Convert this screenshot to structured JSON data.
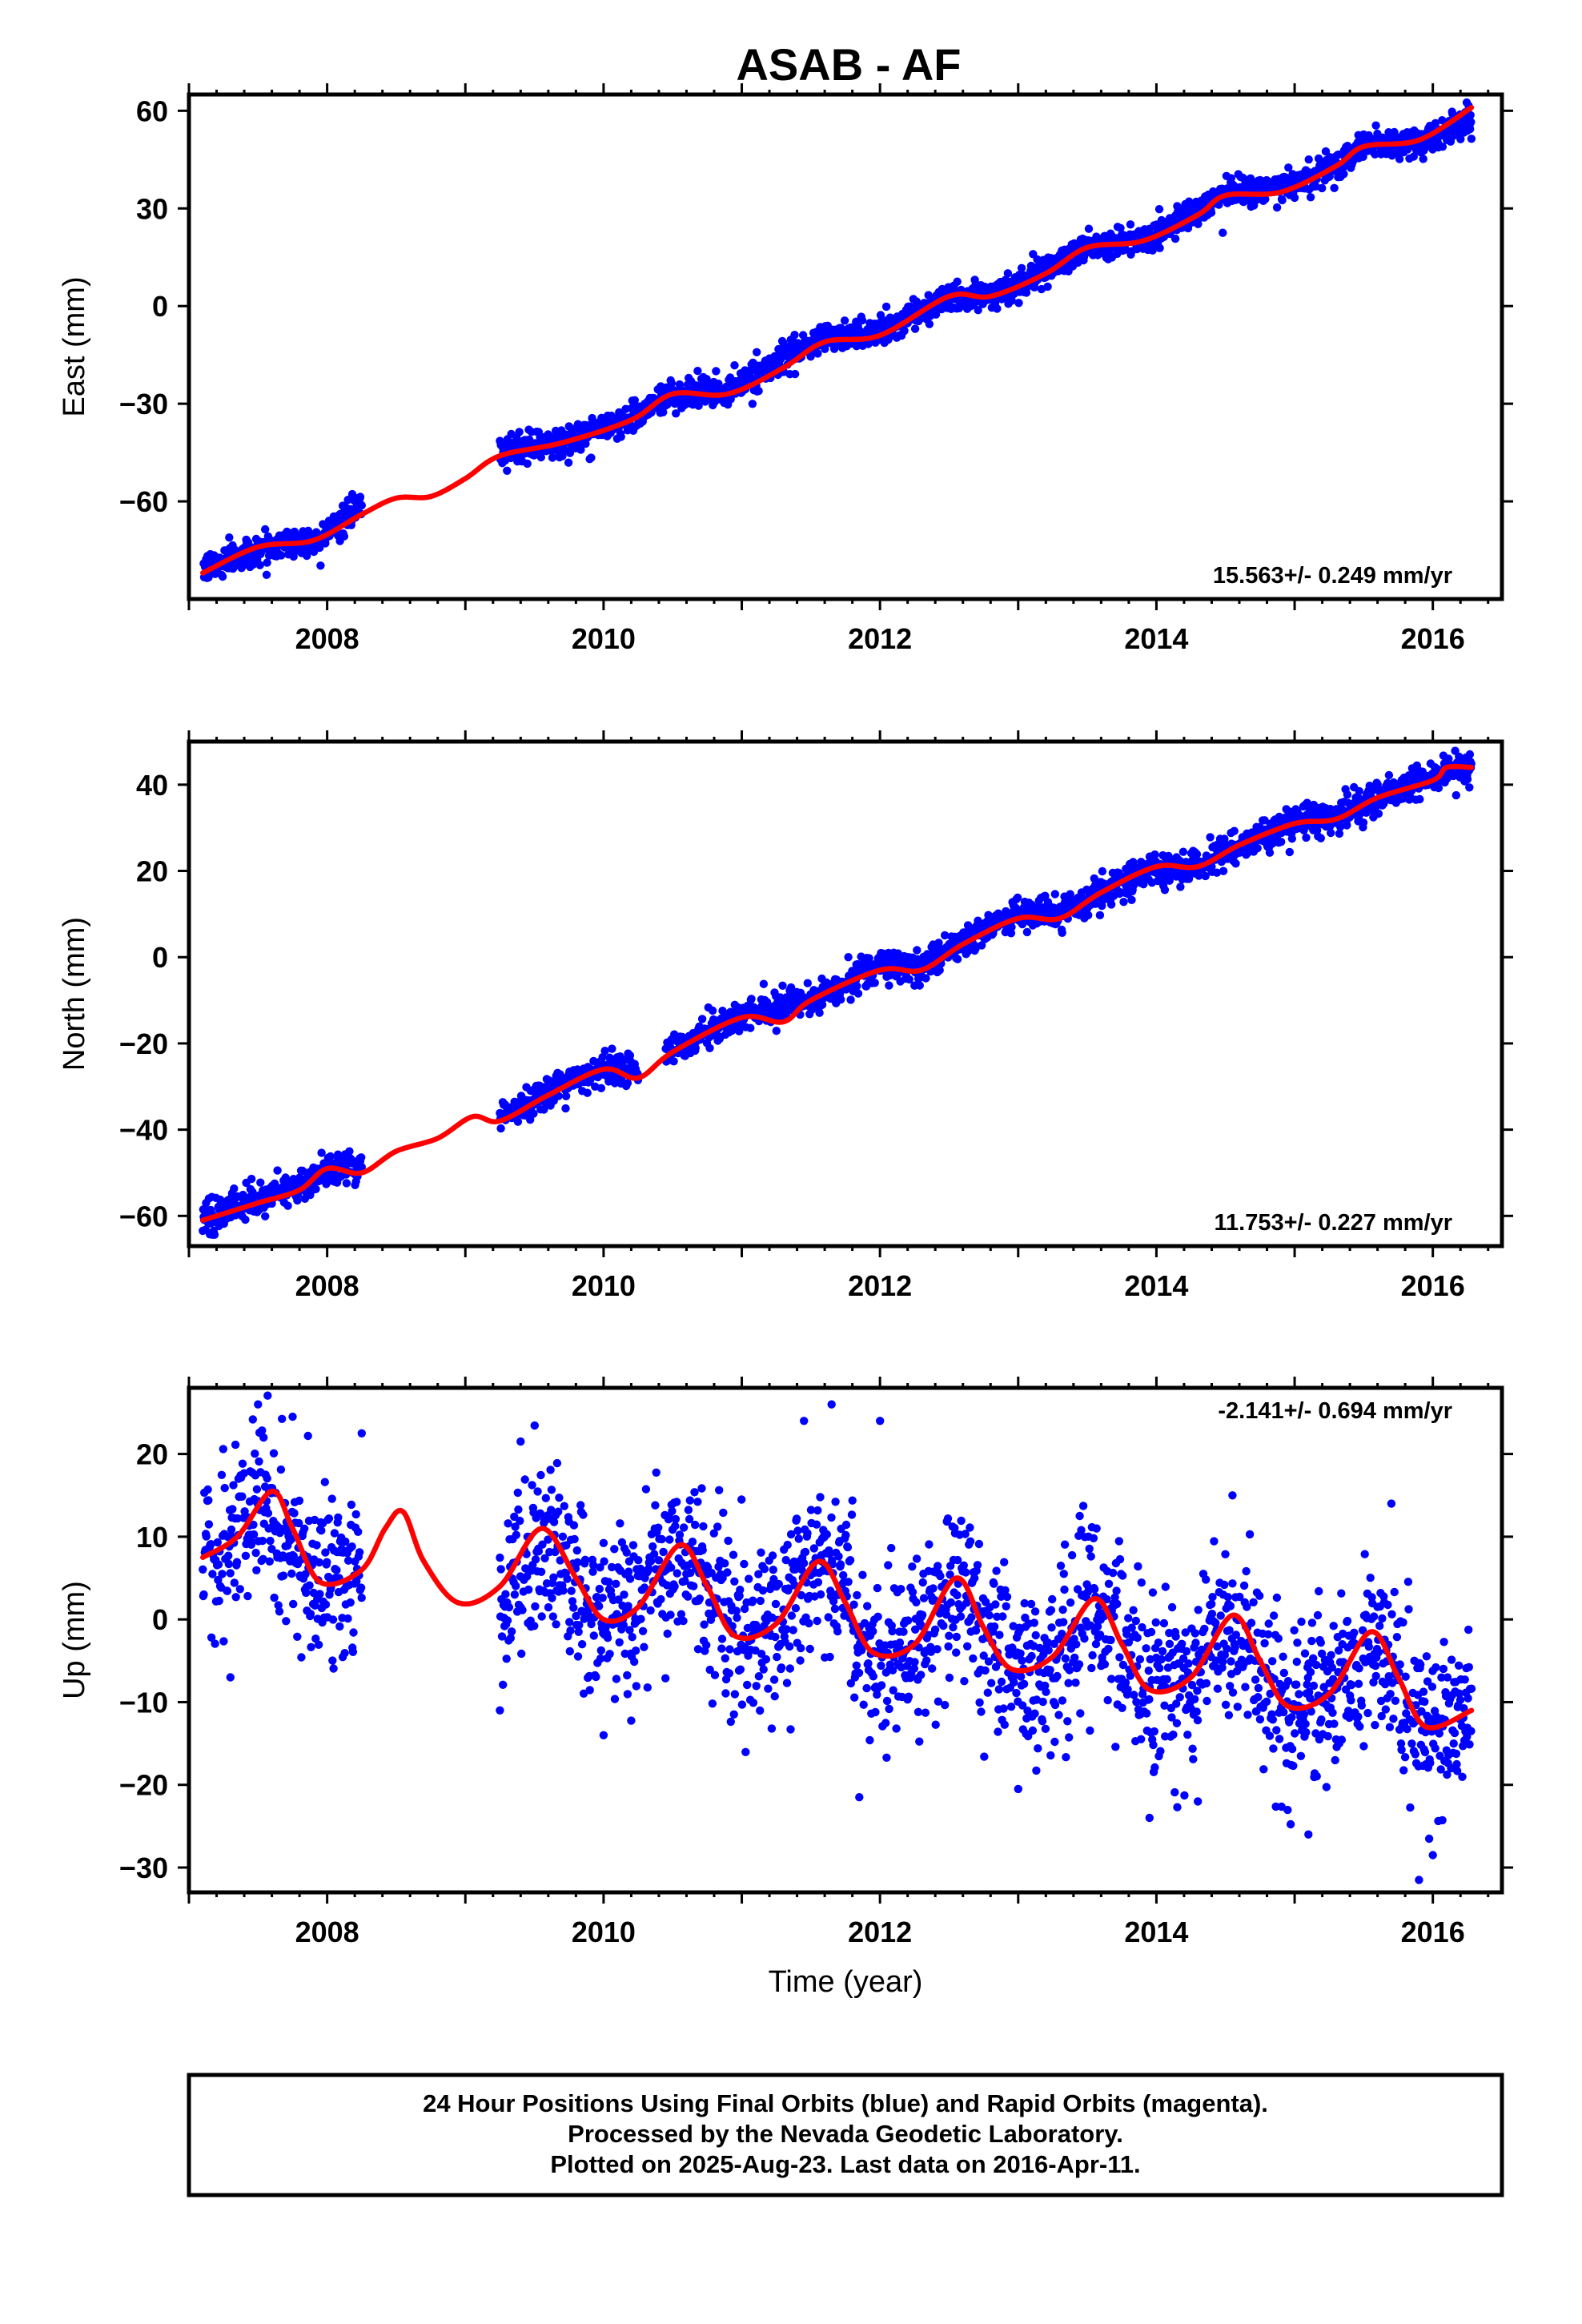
{
  "title": "ASAB - AF",
  "footer": {
    "lines": [
      "24 Hour Positions Using Final Orbits (blue) and Rapid Orbits (magenta).",
      "Processed by the Nevada Geodetic Laboratory.",
      "Plotted on 2025-Aug-23. Last data on 2016-Apr-11."
    ]
  },
  "colors": {
    "points": "#0000ff",
    "model": "#ff0000",
    "frame": "#000000"
  },
  "chart_data": [
    {
      "type": "scatter",
      "ylabel": "East (mm)",
      "xlabel": "",
      "xlim": [
        2007.0,
        2016.5
      ],
      "ylim": [
        -90,
        65
      ],
      "xticks": [
        "2008",
        "2010",
        "2012",
        "2014",
        "2016"
      ],
      "yticks": [
        "60",
        "30",
        "0",
        "-30",
        "-60"
      ],
      "rate": "15.563+/- 0.249 mm/yr",
      "rate_position": "bottom-right",
      "series": [
        {
          "kind": "points",
          "color": "#0000ff",
          "segments": [
            [
              2007.1,
              2008.25
            ],
            [
              2009.25,
              2016.28
            ]
          ],
          "trend": [
            [
              2007.1,
              -81
            ],
            [
              2007.5,
              -74
            ],
            [
              2007.9,
              -72
            ],
            [
              2008.25,
              -62
            ],
            [
              2009.25,
              -45
            ],
            [
              2009.7,
              -42
            ],
            [
              2010.2,
              -34
            ],
            [
              2010.5,
              -27
            ],
            [
              2010.9,
              -26
            ],
            [
              2011.3,
              -16
            ],
            [
              2011.6,
              -10
            ],
            [
              2012.0,
              -8
            ],
            [
              2012.5,
              3
            ],
            [
              2012.8,
              3
            ],
            [
              2013.2,
              11
            ],
            [
              2013.5,
              19
            ],
            [
              2013.9,
              20
            ],
            [
              2014.3,
              29
            ],
            [
              2014.5,
              35
            ],
            [
              2014.9,
              36
            ],
            [
              2015.3,
              43
            ],
            [
              2015.5,
              50
            ],
            [
              2015.9,
              50
            ],
            [
              2016.28,
              58
            ]
          ],
          "scatter_mm": 2.2,
          "outliers": [
            [
              2014.48,
              22.5
            ],
            [
              2009.9,
              -47
            ]
          ]
        },
        {
          "kind": "model",
          "color": "#ff0000",
          "points": [
            [
              2007.1,
              -82
            ],
            [
              2007.5,
              -74
            ],
            [
              2007.9,
              -72
            ],
            [
              2008.25,
              -64
            ],
            [
              2008.5,
              -59
            ],
            [
              2008.75,
              -58.5
            ],
            [
              2009.0,
              -53
            ],
            [
              2009.25,
              -46
            ],
            [
              2009.7,
              -42
            ],
            [
              2010.2,
              -35
            ],
            [
              2010.5,
              -27
            ],
            [
              2010.9,
              -27
            ],
            [
              2011.3,
              -19
            ],
            [
              2011.6,
              -11
            ],
            [
              2012.0,
              -9
            ],
            [
              2012.5,
              3
            ],
            [
              2012.8,
              3
            ],
            [
              2013.2,
              10
            ],
            [
              2013.5,
              18
            ],
            [
              2013.9,
              20
            ],
            [
              2014.3,
              28
            ],
            [
              2014.5,
              34
            ],
            [
              2014.9,
              35
            ],
            [
              2015.3,
              43
            ],
            [
              2015.5,
              49
            ],
            [
              2015.9,
              51
            ],
            [
              2016.28,
              61
            ]
          ]
        }
      ]
    },
    {
      "type": "scatter",
      "ylabel": "North (mm)",
      "xlabel": "",
      "xlim": [
        2007.0,
        2016.5
      ],
      "ylim": [
        -67,
        50
      ],
      "xticks": [
        "2008",
        "2010",
        "2012",
        "2014",
        "2016"
      ],
      "yticks": [
        "40",
        "20",
        "0",
        "-20",
        "-40",
        "-60"
      ],
      "rate": "11.753+/- 0.227 mm/yr",
      "rate_position": "bottom-right",
      "series": [
        {
          "kind": "points",
          "color": "#0000ff",
          "segments": [
            [
              2007.1,
              2008.25
            ],
            [
              2009.25,
              2010.25
            ],
            [
              2010.45,
              2016.28
            ]
          ],
          "trend": [
            [
              2007.1,
              -61
            ],
            [
              2007.5,
              -56
            ],
            [
              2007.8,
              -53
            ],
            [
              2008.0,
              -49
            ],
            [
              2008.25,
              -49
            ],
            [
              2009.25,
              -37
            ],
            [
              2009.6,
              -31
            ],
            [
              2010.0,
              -26
            ],
            [
              2010.25,
              -26
            ],
            [
              2010.45,
              -22
            ],
            [
              2011.0,
              -14
            ],
            [
              2011.5,
              -10
            ],
            [
              2012.0,
              -2
            ],
            [
              2012.3,
              -2
            ],
            [
              2012.6,
              4
            ],
            [
              2013.0,
              10
            ],
            [
              2013.3,
              10
            ],
            [
              2013.6,
              15
            ],
            [
              2014.0,
              21
            ],
            [
              2014.3,
              21
            ],
            [
              2014.6,
              26
            ],
            [
              2015.0,
              31
            ],
            [
              2015.3,
              33
            ],
            [
              2015.6,
              37
            ],
            [
              2016.0,
              42
            ],
            [
              2016.28,
              44
            ]
          ],
          "scatter_mm": 1.8,
          "outliers": []
        },
        {
          "kind": "model",
          "color": "#ff0000",
          "points": [
            [
              2007.1,
              -61
            ],
            [
              2007.5,
              -57
            ],
            [
              2007.8,
              -54
            ],
            [
              2008.0,
              -49
            ],
            [
              2008.25,
              -50
            ],
            [
              2008.5,
              -45
            ],
            [
              2008.8,
              -42
            ],
            [
              2009.05,
              -37
            ],
            [
              2009.25,
              -38
            ],
            [
              2009.6,
              -32
            ],
            [
              2010.0,
              -26
            ],
            [
              2010.25,
              -28
            ],
            [
              2010.5,
              -22
            ],
            [
              2011.0,
              -14
            ],
            [
              2011.3,
              -15
            ],
            [
              2011.5,
              -10
            ],
            [
              2012.0,
              -3
            ],
            [
              2012.3,
              -3
            ],
            [
              2012.6,
              3
            ],
            [
              2013.0,
              9
            ],
            [
              2013.3,
              9
            ],
            [
              2013.6,
              15
            ],
            [
              2014.0,
              21
            ],
            [
              2014.3,
              21
            ],
            [
              2014.6,
              26
            ],
            [
              2015.0,
              31
            ],
            [
              2015.3,
              32
            ],
            [
              2015.6,
              37
            ],
            [
              2016.0,
              41
            ],
            [
              2016.1,
              44
            ],
            [
              2016.28,
              44
            ]
          ]
        }
      ]
    },
    {
      "type": "scatter",
      "ylabel": "Up (mm)",
      "xlabel": "Time (year)",
      "xlim": [
        2007.0,
        2016.5
      ],
      "ylim": [
        -33,
        28
      ],
      "xticks": [
        "2008",
        "2010",
        "2012",
        "2014",
        "2016"
      ],
      "yticks": [
        "20",
        "10",
        "0",
        "-10",
        "-20",
        "-30"
      ],
      "rate": "-2.141+/- 0.694 mm/yr",
      "rate_position": "top-right",
      "series": [
        {
          "kind": "points",
          "color": "#0000ff",
          "segments": [
            [
              2007.1,
              2008.25
            ],
            [
              2009.25,
              2016.28
            ]
          ],
          "trend": [
            [
              2007.1,
              7
            ],
            [
              2007.55,
              15
            ],
            [
              2007.9,
              4
            ],
            [
              2008.25,
              6
            ],
            [
              2009.25,
              3
            ],
            [
              2009.55,
              10
            ],
            [
              2009.95,
              0
            ],
            [
              2010.2,
              1
            ],
            [
              2010.55,
              8
            ],
            [
              2010.95,
              -2
            ],
            [
              2011.25,
              -1
            ],
            [
              2011.55,
              8
            ],
            [
              2011.95,
              -4
            ],
            [
              2012.25,
              -3
            ],
            [
              2012.55,
              4
            ],
            [
              2012.95,
              -6
            ],
            [
              2013.25,
              -5
            ],
            [
              2013.55,
              2
            ],
            [
              2013.95,
              -8
            ],
            [
              2014.25,
              -7
            ],
            [
              2014.55,
              0
            ],
            [
              2014.95,
              -11
            ],
            [
              2015.25,
              -9
            ],
            [
              2015.55,
              -2
            ],
            [
              2015.95,
              -13
            ],
            [
              2016.28,
              -11
            ]
          ],
          "scatter_mm": 5.0,
          "outliers": [
            [
              2007.5,
              26
            ],
            [
              2007.75,
              24.5
            ],
            [
              2008.25,
              22.5
            ],
            [
              2009.4,
              21.5
            ],
            [
              2011.65,
              26
            ],
            [
              2011.45,
              24
            ],
            [
              2014.55,
              15
            ],
            [
              2011.85,
              -21.5
            ],
            [
              2013.0,
              -20.5
            ],
            [
              2014.3,
              -22
            ],
            [
              2013.95,
              -24
            ],
            [
              2015.9,
              -31.5
            ],
            [
              2015.1,
              -26
            ],
            [
              2012.0,
              24
            ],
            [
              2015.7,
              14
            ],
            [
              2016.0,
              -28.5
            ],
            [
              2010.0,
              -14
            ],
            [
              2007.3,
              -7
            ],
            [
              2009.25,
              -11
            ]
          ]
        },
        {
          "kind": "model",
          "color": "#ff0000",
          "points": [
            [
              2007.1,
              7.5
            ],
            [
              2007.35,
              10
            ],
            [
              2007.6,
              15.5
            ],
            [
              2007.75,
              11
            ],
            [
              2007.95,
              4.5
            ],
            [
              2008.25,
              6
            ],
            [
              2008.42,
              11
            ],
            [
              2008.55,
              13
            ],
            [
              2008.7,
              7
            ],
            [
              2008.95,
              2
            ],
            [
              2009.25,
              4
            ],
            [
              2009.55,
              11
            ],
            [
              2009.8,
              5
            ],
            [
              2010.0,
              0
            ],
            [
              2010.25,
              1.5
            ],
            [
              2010.55,
              9
            ],
            [
              2010.75,
              4
            ],
            [
              2010.95,
              -2
            ],
            [
              2011.25,
              -0.5
            ],
            [
              2011.55,
              7
            ],
            [
              2011.75,
              2
            ],
            [
              2011.95,
              -4
            ],
            [
              2012.25,
              -3
            ],
            [
              2012.55,
              5
            ],
            [
              2012.75,
              -1
            ],
            [
              2012.95,
              -6
            ],
            [
              2013.25,
              -4.5
            ],
            [
              2013.55,
              2.5
            ],
            [
              2013.75,
              -3
            ],
            [
              2013.95,
              -8.5
            ],
            [
              2014.25,
              -7
            ],
            [
              2014.55,
              0.5
            ],
            [
              2014.75,
              -5
            ],
            [
              2014.95,
              -10.5
            ],
            [
              2015.25,
              -9
            ],
            [
              2015.55,
              -1.5
            ],
            [
              2015.75,
              -7
            ],
            [
              2015.95,
              -13
            ],
            [
              2016.28,
              -11
            ]
          ]
        }
      ]
    }
  ]
}
